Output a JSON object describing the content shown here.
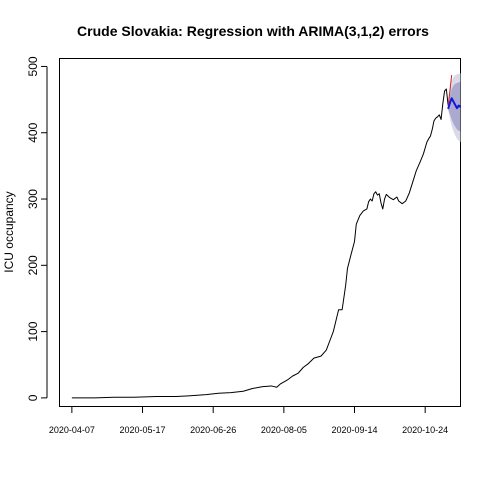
{
  "chart_data": {
    "type": "line",
    "title": "Crude Slovakia: Regression with ARIMA(3,1,2) errors",
    "xlabel": "",
    "ylabel": "ICU occupancy",
    "x_axis_type": "date",
    "xlim": [
      "2020-03-31",
      "2020-11-13"
    ],
    "ylim": [
      -13,
      512
    ],
    "grid": false,
    "legend": "none",
    "x_tick_labels": [
      "2020-04-07",
      "2020-05-17",
      "2020-06-26",
      "2020-08-05",
      "2020-09-14",
      "2020-10-24"
    ],
    "y_tick_values": [
      0,
      100,
      200,
      300,
      400,
      500
    ],
    "y_tick_labels": [
      "0",
      "100",
      "200",
      "300",
      "400",
      "500"
    ],
    "series": [
      {
        "role": "observed",
        "color": "#000000",
        "points": [
          [
            "2020-04-07",
            0
          ],
          [
            "2020-04-20",
            0
          ],
          [
            "2020-05-01",
            1
          ],
          [
            "2020-05-12",
            1
          ],
          [
            "2020-05-25",
            2
          ],
          [
            "2020-06-05",
            2
          ],
          [
            "2020-06-12",
            3
          ],
          [
            "2020-06-22",
            5
          ],
          [
            "2020-06-29",
            7
          ],
          [
            "2020-07-06",
            8
          ],
          [
            "2020-07-13",
            10
          ],
          [
            "2020-07-18",
            14
          ],
          [
            "2020-07-24",
            17
          ],
          [
            "2020-07-29",
            18
          ],
          [
            "2020-08-01",
            16
          ],
          [
            "2020-08-03",
            21
          ],
          [
            "2020-08-07",
            27
          ],
          [
            "2020-08-10",
            33
          ],
          [
            "2020-08-13",
            37
          ],
          [
            "2020-08-16",
            46
          ],
          [
            "2020-08-19",
            52
          ],
          [
            "2020-08-22",
            60
          ],
          [
            "2020-08-26",
            63
          ],
          [
            "2020-08-29",
            72
          ],
          [
            "2020-08-31",
            86
          ],
          [
            "2020-09-02",
            100
          ],
          [
            "2020-09-04",
            122
          ],
          [
            "2020-09-05",
            133
          ],
          [
            "2020-09-07",
            133
          ],
          [
            "2020-09-09",
            170
          ],
          [
            "2020-09-10",
            195
          ],
          [
            "2020-09-12",
            216
          ],
          [
            "2020-09-14",
            236
          ],
          [
            "2020-09-15",
            262
          ],
          [
            "2020-09-17",
            275
          ],
          [
            "2020-09-19",
            282
          ],
          [
            "2020-09-21",
            285
          ],
          [
            "2020-09-22",
            296
          ],
          [
            "2020-09-23",
            300
          ],
          [
            "2020-09-24",
            297
          ],
          [
            "2020-09-25",
            308
          ],
          [
            "2020-09-26",
            311
          ],
          [
            "2020-09-27",
            306
          ],
          [
            "2020-09-28",
            308
          ],
          [
            "2020-09-29",
            294
          ],
          [
            "2020-09-30",
            285
          ],
          [
            "2020-10-01",
            300
          ],
          [
            "2020-10-02",
            307
          ],
          [
            "2020-10-04",
            302
          ],
          [
            "2020-10-06",
            299
          ],
          [
            "2020-10-08",
            303
          ],
          [
            "2020-10-09",
            297
          ],
          [
            "2020-10-11",
            293
          ],
          [
            "2020-10-13",
            297
          ],
          [
            "2020-10-15",
            309
          ],
          [
            "2020-10-17",
            326
          ],
          [
            "2020-10-19",
            343
          ],
          [
            "2020-10-21",
            355
          ],
          [
            "2020-10-23",
            368
          ],
          [
            "2020-10-25",
            386
          ],
          [
            "2020-10-26",
            391
          ],
          [
            "2020-10-27",
            395
          ],
          [
            "2020-10-28",
            405
          ],
          [
            "2020-10-29",
            418
          ],
          [
            "2020-10-30",
            422
          ],
          [
            "2020-10-31",
            424
          ],
          [
            "2020-11-01",
            427
          ],
          [
            "2020-11-02",
            420
          ],
          [
            "2020-11-03",
            444
          ],
          [
            "2020-11-04",
            463
          ],
          [
            "2020-11-05",
            466
          ],
          [
            "2020-11-06",
            441
          ]
        ]
      },
      {
        "role": "actual-after-forecast-start",
        "color": "#cc2222",
        "points": [
          [
            "2020-11-06",
            441
          ],
          [
            "2020-11-07",
            463
          ],
          [
            "2020-11-08",
            487
          ]
        ]
      },
      {
        "role": "forecast-mean",
        "color": "#1515e0",
        "points": [
          [
            "2020-11-06",
            436
          ],
          [
            "2020-11-07",
            445
          ],
          [
            "2020-11-08",
            452
          ],
          [
            "2020-11-09",
            447
          ],
          [
            "2020-11-10",
            442
          ],
          [
            "2020-11-11",
            437
          ],
          [
            "2020-11-12",
            441
          ],
          [
            "2020-11-13",
            439
          ]
        ]
      },
      {
        "role": "forecast-interval-95",
        "color": "#d9d9e8",
        "lower": [
          435,
          422,
          410,
          402,
          396,
          391,
          388,
          386
        ],
        "upper": [
          437,
          462,
          478,
          484,
          487,
          488,
          489,
          490
        ],
        "x": [
          "2020-11-06",
          "2020-11-07",
          "2020-11-08",
          "2020-11-09",
          "2020-11-10",
          "2020-11-11",
          "2020-11-12",
          "2020-11-13"
        ]
      },
      {
        "role": "forecast-interval-80",
        "color": "#aaaace",
        "lower": [
          435,
          428,
          420,
          414,
          409,
          405,
          403,
          402
        ],
        "upper": [
          437,
          456,
          466,
          471,
          474,
          475,
          476,
          477
        ],
        "x": [
          "2020-11-06",
          "2020-11-07",
          "2020-11-08",
          "2020-11-09",
          "2020-11-10",
          "2020-11-11",
          "2020-11-12",
          "2020-11-13"
        ]
      }
    ]
  }
}
